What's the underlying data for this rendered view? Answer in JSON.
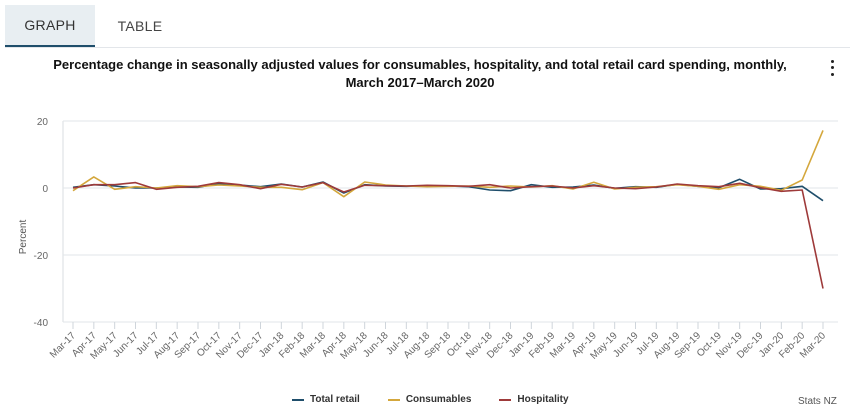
{
  "tabs": [
    {
      "label": "GRAPH",
      "active": true
    },
    {
      "label": "TABLE",
      "active": false
    }
  ],
  "menu_icon": "more-vertical-icon",
  "credit": "Stats NZ",
  "chart_data": {
    "type": "line",
    "title_line1": "Percentage change in seasonally adjusted values for consumables, hospitality, and total retail card spending, monthly,",
    "title_line2": "March 2017–March 2020",
    "xlabel": "",
    "ylabel": "Percent",
    "ylim": [
      -40,
      20
    ],
    "yticks": [
      20,
      0,
      -20,
      -40
    ],
    "grid": true,
    "legend_position": "bottom",
    "x": [
      "Mar-17",
      "Apr-17",
      "May-17",
      "Jun-17",
      "Jul-17",
      "Aug-17",
      "Sep-17",
      "Oct-17",
      "Nov-17",
      "Dec-17",
      "Jan-18",
      "Feb-18",
      "Mar-18",
      "Apr-18",
      "May-18",
      "Jun-18",
      "Jul-18",
      "Aug-18",
      "Sep-18",
      "Oct-18",
      "Nov-18",
      "Dec-18",
      "Jan-19",
      "Feb-19",
      "Mar-19",
      "Apr-19",
      "May-19",
      "Jun-19",
      "Jul-19",
      "Aug-19",
      "Sep-19",
      "Oct-19",
      "Nov-19",
      "Dec-19",
      "Jan-20",
      "Feb-20",
      "Mar-20"
    ],
    "series": [
      {
        "name": "Total retail",
        "color": "#1f4e6b",
        "values": [
          0.2,
          1.0,
          0.6,
          0.0,
          0.0,
          0.3,
          0.2,
          1.3,
          0.9,
          0.4,
          1.2,
          0.3,
          1.8,
          -1.5,
          1.0,
          0.6,
          0.5,
          0.7,
          0.6,
          0.4,
          -0.6,
          -0.8,
          1.0,
          0.2,
          0.3,
          0.9,
          -0.1,
          0.4,
          0.2,
          1.1,
          0.5,
          0.1,
          2.6,
          -0.3,
          -0.2,
          0.5,
          -3.8
        ]
      },
      {
        "name": "Consumables",
        "color": "#d4a73c",
        "values": [
          -0.8,
          3.3,
          -0.4,
          0.4,
          0.0,
          0.7,
          0.4,
          0.9,
          0.6,
          0.2,
          0.2,
          -0.5,
          1.6,
          -2.6,
          1.8,
          0.9,
          0.6,
          0.4,
          0.5,
          0.6,
          0.2,
          0.6,
          0.3,
          0.7,
          -0.3,
          1.7,
          -0.3,
          0.2,
          0.4,
          1.0,
          0.5,
          -0.4,
          1.0,
          0.5,
          -0.7,
          2.4,
          17.2
        ]
      },
      {
        "name": "Hospitality",
        "color": "#9e3a3a",
        "values": [
          0.0,
          1.0,
          1.0,
          1.6,
          -0.4,
          0.2,
          0.5,
          1.6,
          1.0,
          -0.2,
          1.1,
          0.3,
          1.6,
          -1.2,
          0.8,
          0.7,
          0.6,
          0.8,
          0.7,
          0.5,
          1.0,
          0.0,
          0.4,
          0.6,
          0.0,
          0.7,
          0.0,
          -0.2,
          0.3,
          1.2,
          0.7,
          0.4,
          1.4,
          0.1,
          -1.0,
          -0.6,
          -30.0
        ]
      }
    ]
  }
}
